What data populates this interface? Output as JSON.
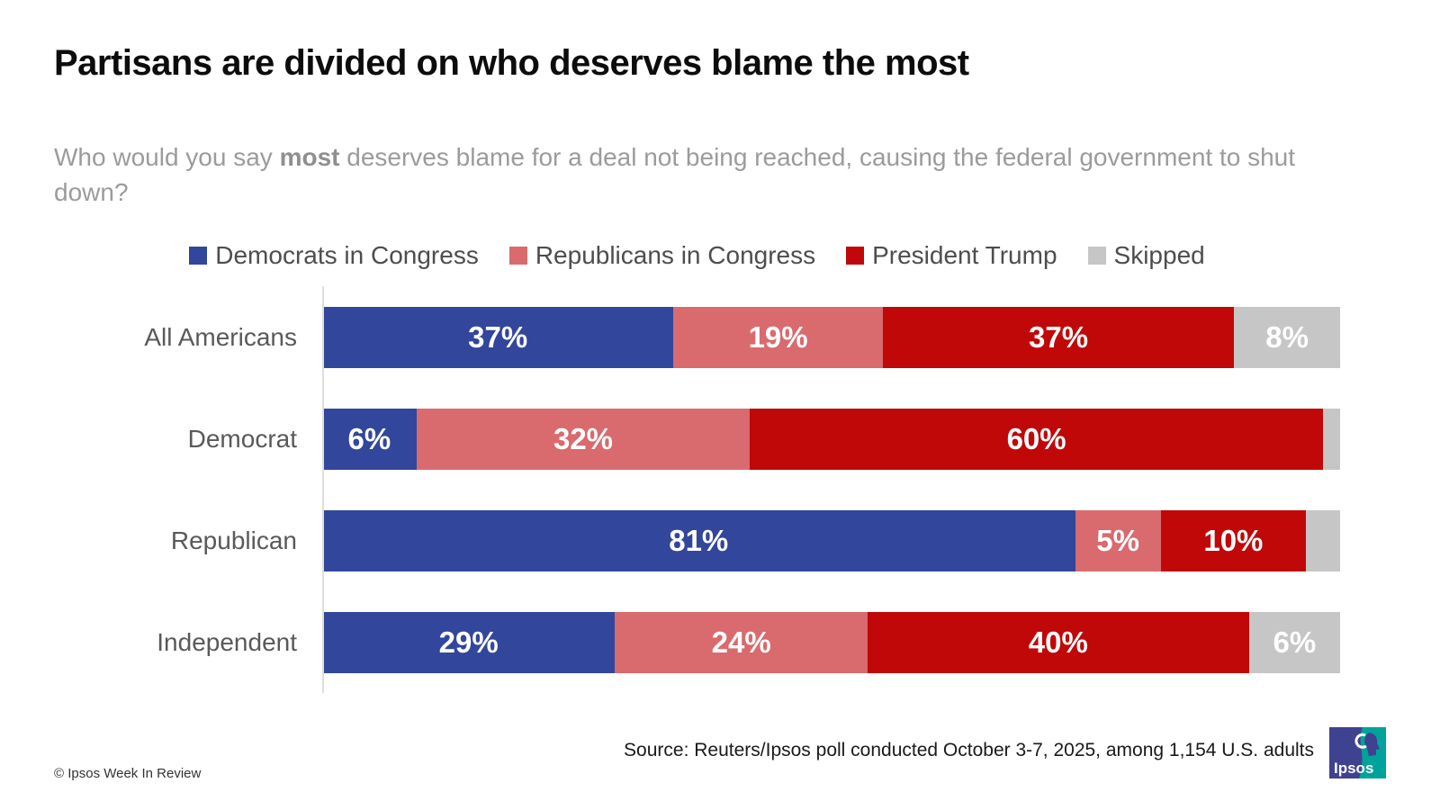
{
  "title": "Partisans are divided on who deserves blame the most",
  "subtitle": {
    "prefix": "Who would you say ",
    "bold": "most",
    "suffix": " deserves blame for a deal not being reached, causing the federal government to shut down?"
  },
  "chart_data": {
    "type": "bar",
    "stacked": true,
    "orientation": "horizontal",
    "unit": "%",
    "xlim": [
      0,
      100
    ],
    "grid": false,
    "legend_position": "top",
    "categories": [
      "All Americans",
      "Democrat",
      "Republican",
      "Independent"
    ],
    "series": [
      {
        "name": "Democrats in Congress",
        "color": "#32469B",
        "values": [
          37,
          6,
          81,
          29
        ]
      },
      {
        "name": "Republicans in Congress",
        "color": "#D96A6E",
        "values": [
          19,
          32,
          5,
          24
        ]
      },
      {
        "name": "President Trump",
        "color": "#C00808",
        "values": [
          37,
          60,
          10,
          40
        ]
      },
      {
        "name": "Skipped",
        "color": "#C6C6C6",
        "values": [
          8,
          2,
          4,
          6
        ],
        "label_shown": [
          true,
          false,
          false,
          true
        ]
      }
    ]
  },
  "source": "Source: Reuters/Ipsos poll conducted October 3-7, 2025, among 1,154 U.S. adults",
  "footer": "© Ipsos Week In Review",
  "logo": {
    "text": "Ipsos",
    "blue": "#3F4191",
    "teal": "#00A39A"
  }
}
